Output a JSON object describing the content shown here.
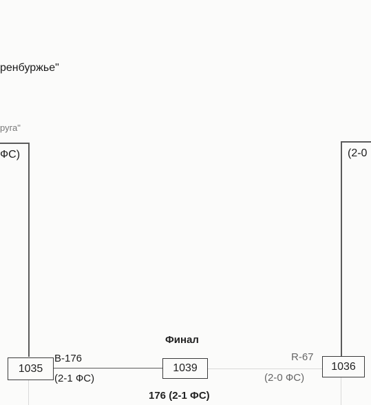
{
  "header": {
    "title_fragment": "ренбуржье\"",
    "subtitle_fragment": "руга\""
  },
  "bracket": {
    "left_score_fragment": "ФС)",
    "right_score_fragment": "(2-0",
    "final_label": "Финал",
    "boxes": {
      "left": "1035",
      "center": "1039",
      "right": "1036"
    },
    "left_result": {
      "score": "B-176",
      "detail": "(2-1 ФС)"
    },
    "right_result": {
      "score": "R-67",
      "detail": "(2-0 ФС)"
    },
    "final_result": "176 (2-1 ФС)"
  }
}
